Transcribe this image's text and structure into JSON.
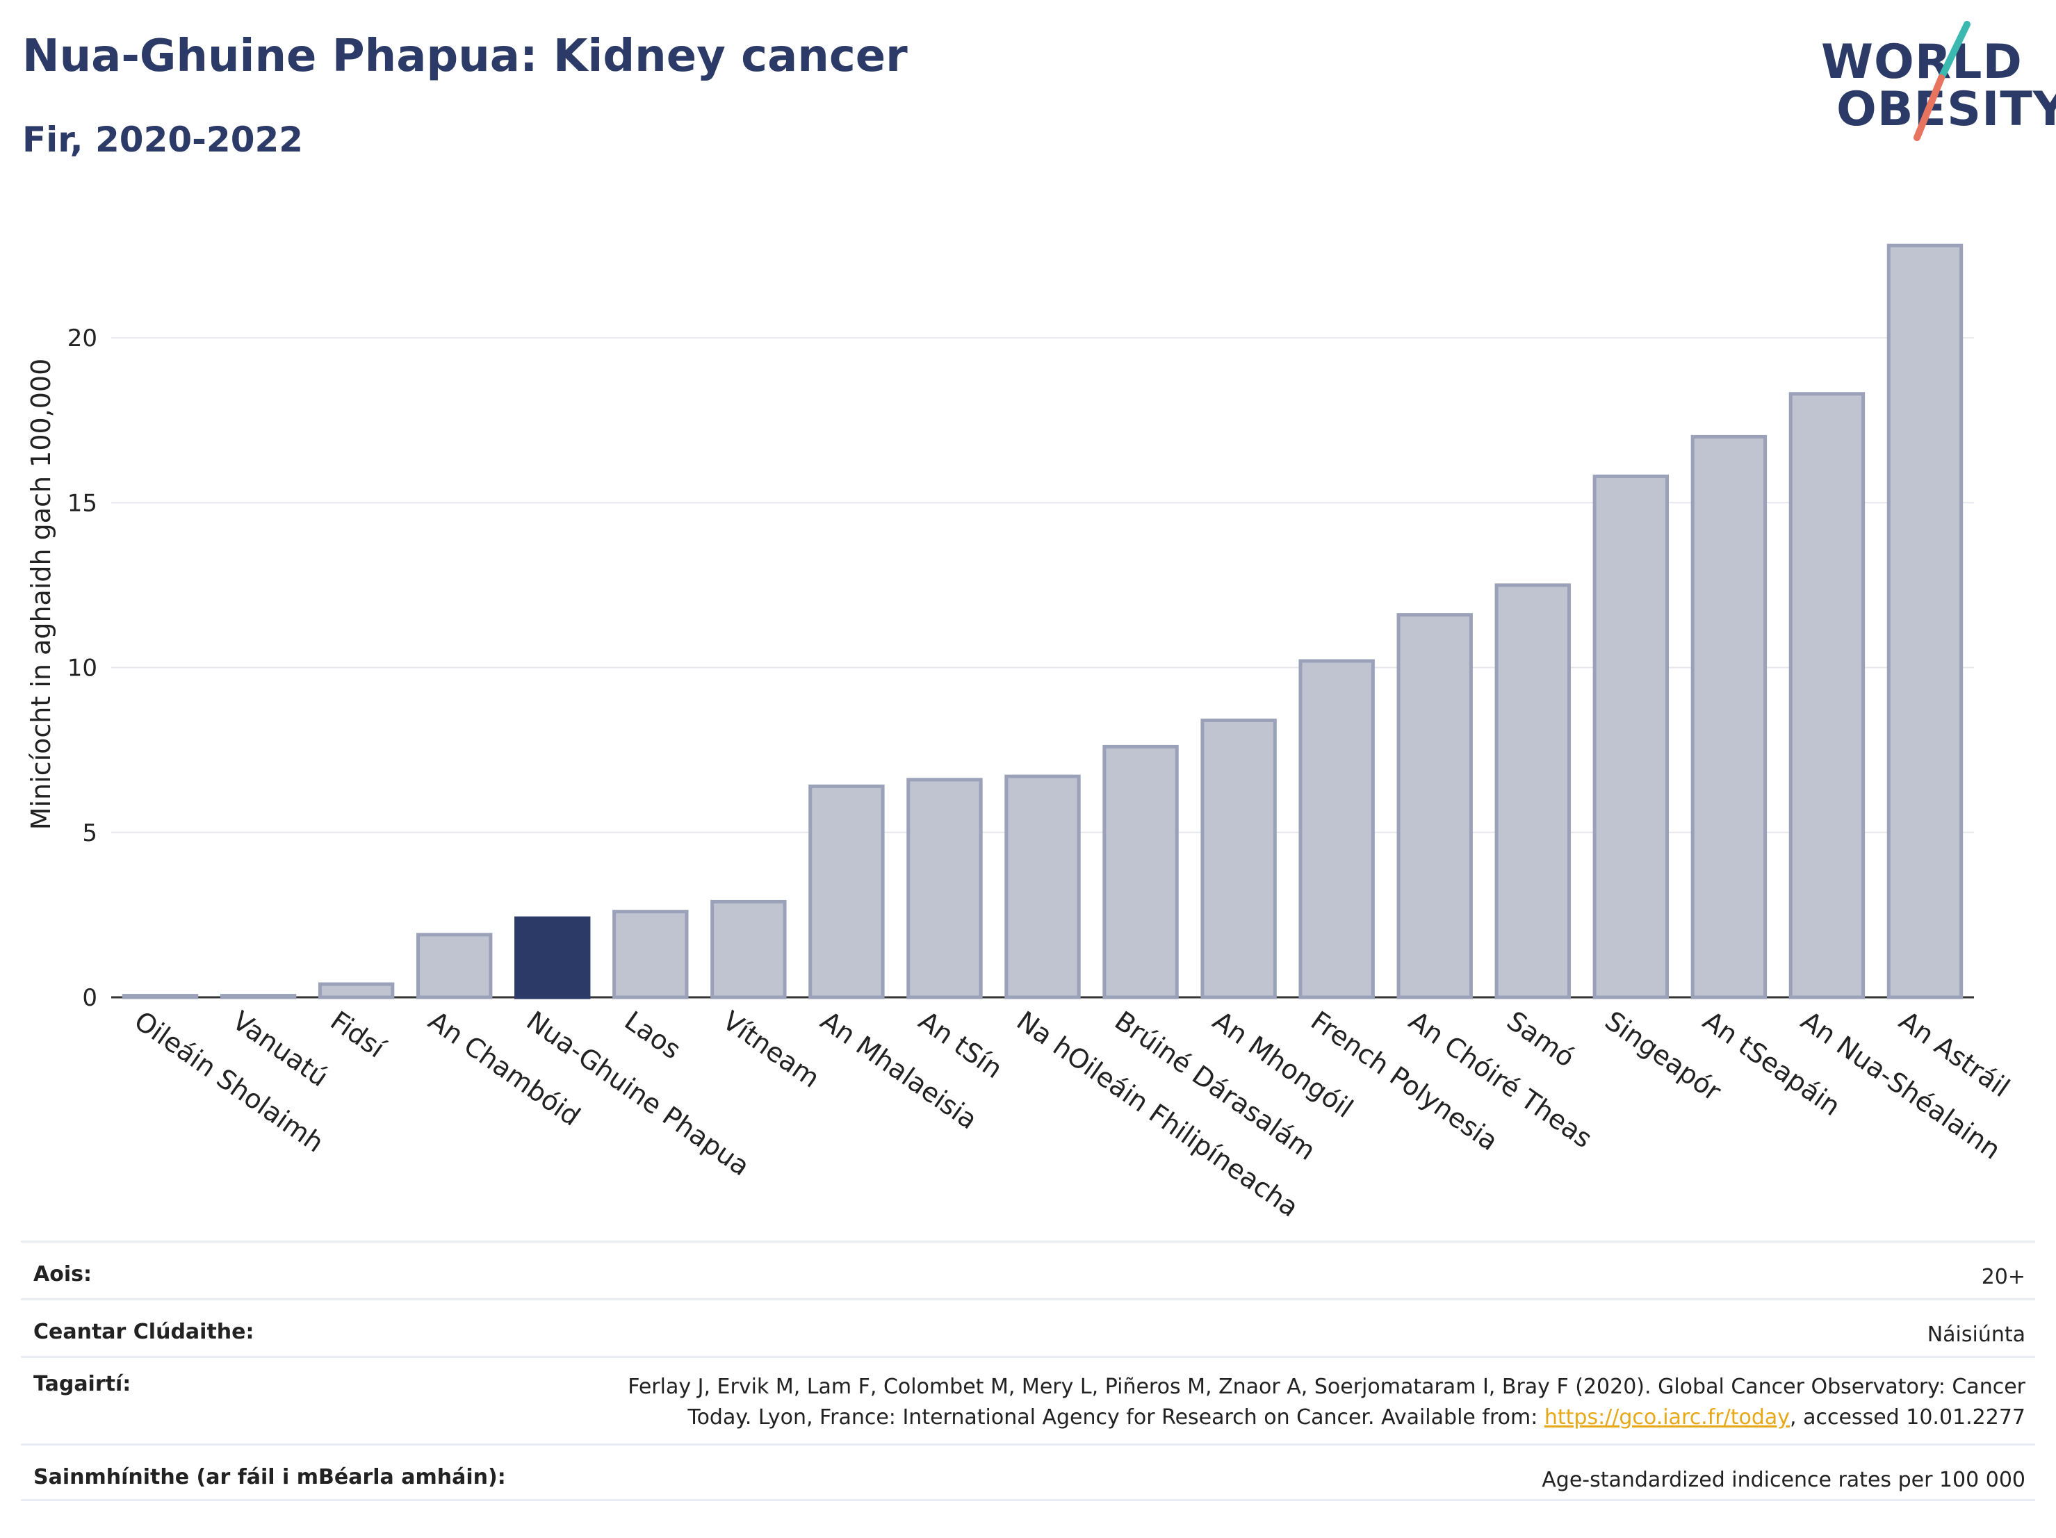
{
  "title": "Nua-Ghuine Phapua: Kidney cancer",
  "subtitle": "Fir, 2020-2022",
  "logo": {
    "line1": "WORLD",
    "line2": "OBESITY"
  },
  "colors": {
    "highlight": "#2b3a67",
    "bar_fill": "#c0c4d1",
    "bar_stroke": "#9aa1b9",
    "title": "#2b3a67",
    "logo_teal": "#3bb8b0",
    "logo_coral": "#e8735f",
    "link": "#e6a817"
  },
  "chart_data": {
    "type": "bar",
    "title": "Nua-Ghuine Phapua: Kidney cancer",
    "subtitle": "Fir, 2020-2022",
    "ylabel": "Minicíocht in aghaidh gach 100,000",
    "xlabel": "",
    "ylim": [
      0,
      23.5
    ],
    "yticks": [
      0,
      5,
      10,
      15,
      20
    ],
    "grid": true,
    "highlight": "Nua-Ghuine Phapua",
    "categories": [
      "Oileáin Sholaimh",
      "Vanuatú",
      "Fidsí",
      "An Chambóid",
      "Nua-Ghuine Phapua",
      "Laos",
      "Vítneam",
      "An Mhalaeisia",
      "An tSín",
      "Na hOileáin Fhilipíneacha",
      "Brúiné Dárasalám",
      "An Mhongóil",
      "French Polynesia",
      "An Chóiré Theas",
      "Samó",
      "Singeapór",
      "An tSeapáin",
      "An Nua-Shéalainn",
      "An Astráil"
    ],
    "values": [
      0.05,
      0.05,
      0.4,
      1.9,
      2.4,
      2.6,
      2.9,
      6.4,
      6.6,
      6.7,
      7.6,
      8.4,
      10.2,
      11.6,
      12.5,
      15.8,
      17.0,
      18.3,
      22.8
    ]
  },
  "meta": [
    {
      "label": "Aois:",
      "value": "20+"
    },
    {
      "label": "Ceantar Clúdaithe:",
      "value": "Náisiúnta"
    },
    {
      "label": "Tagairtí:",
      "value_line1": "Ferlay J, Ervik M, Lam F, Colombet M, Mery L, Piñeros M, Znaor A, Soerjomataram I, Bray F (2020). Global Cancer Observatory: Cancer",
      "value_line2_pre": "Today. Lyon, France: International Agency for Research on Cancer. Available from: ",
      "link": "https://gco.iarc.fr/today",
      "value_line2_post": ", accessed 10.01.2277"
    },
    {
      "label": "Sainmhínithe (ar fáil i mBéarla amháin):",
      "value": "Age-standardized indicence rates per 100 000"
    }
  ]
}
